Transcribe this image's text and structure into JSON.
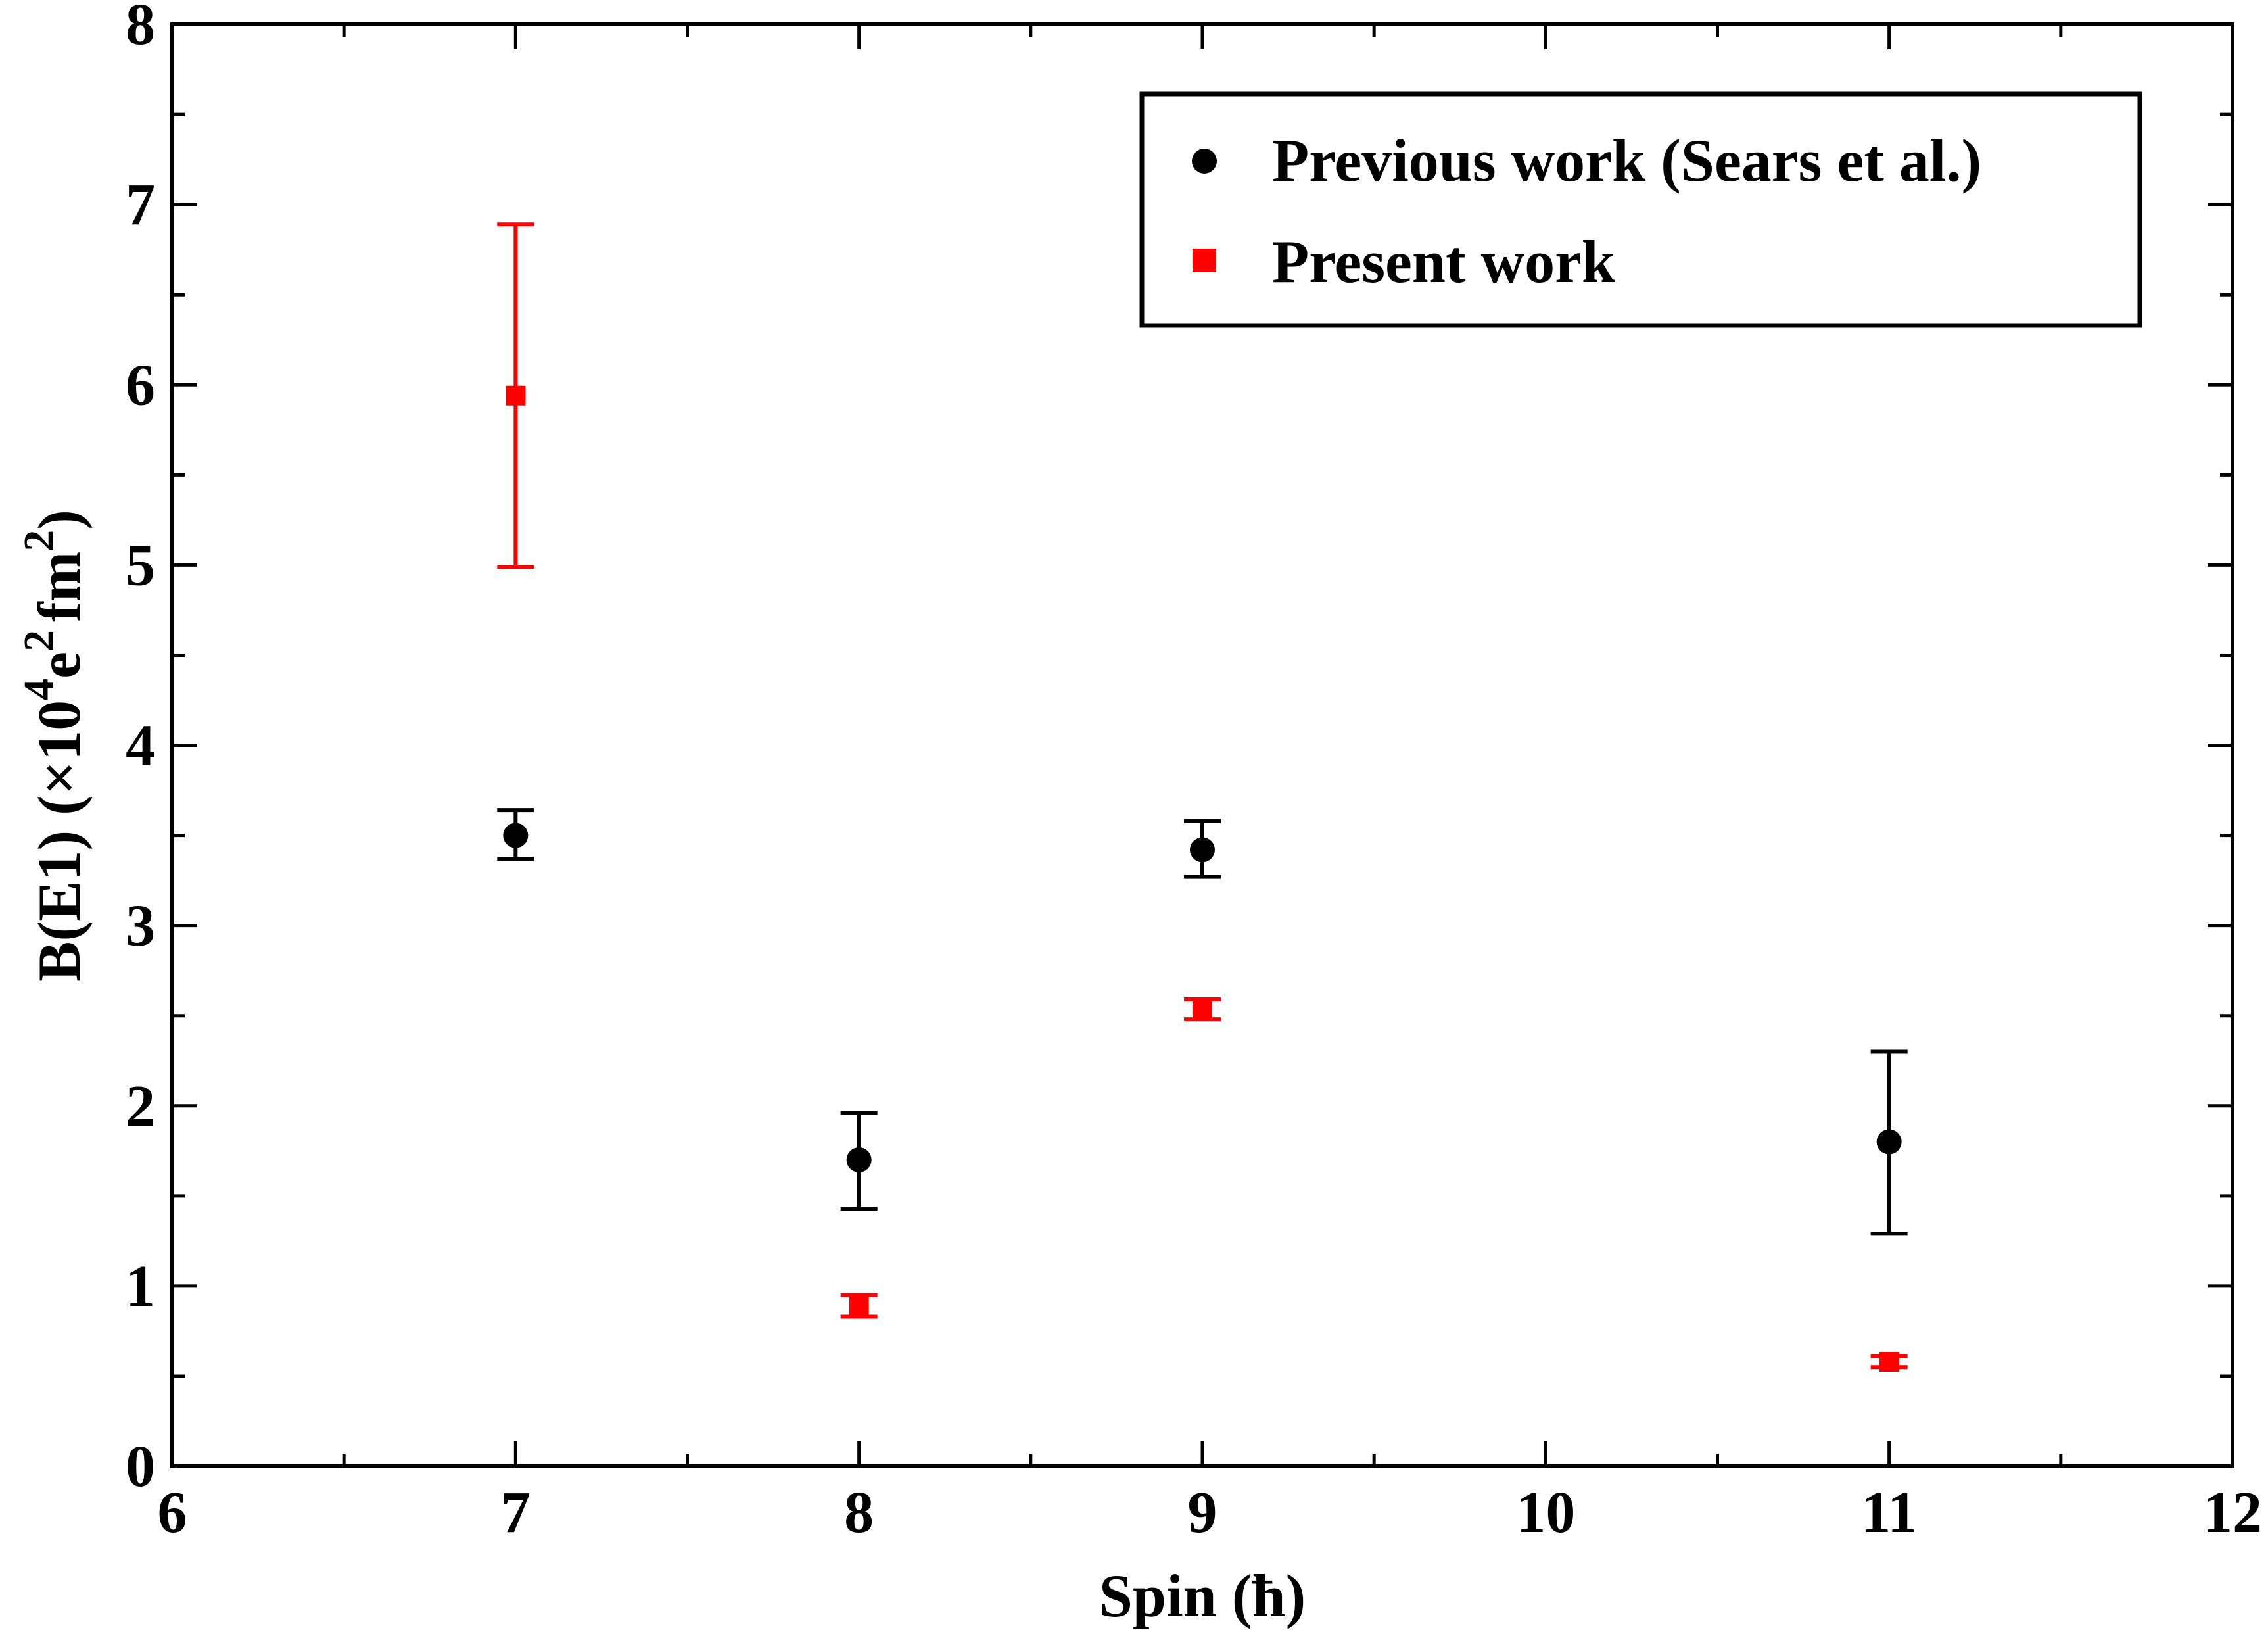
{
  "chart_data": {
    "type": "scatter",
    "title": "",
    "xlabel": "Spin (ħ)",
    "ylabel": {
      "base": "B(E1) (×10",
      "exp1": "4",
      "mid": "e",
      "exp2": "2",
      "tail": "fm",
      "exp3": "2",
      "close": ")"
    },
    "xlim": [
      6,
      12
    ],
    "ylim": [
      0,
      8
    ],
    "x_ticks": [
      "6",
      "7",
      "8",
      "9",
      "10",
      "11",
      "12"
    ],
    "y_ticks": [
      "0",
      "1",
      "2",
      "3",
      "4",
      "5",
      "6",
      "7",
      "8"
    ],
    "grid": false,
    "legend_position": "top-right",
    "series": [
      {
        "name": "Previous work (Sears et al.)",
        "color": "#000000",
        "marker": "circle",
        "points": [
          {
            "x": 7,
            "y": 3.5,
            "err_low": 3.37,
            "err_high": 3.64
          },
          {
            "x": 8,
            "y": 1.7,
            "err_low": 1.43,
            "err_high": 1.96
          },
          {
            "x": 9,
            "y": 3.42,
            "err_low": 3.27,
            "err_high": 3.58
          },
          {
            "x": 11,
            "y": 1.8,
            "err_low": 1.29,
            "err_high": 2.3
          }
        ]
      },
      {
        "name": "Present work",
        "color": "#ff0000",
        "marker": "square",
        "points": [
          {
            "x": 7,
            "y": 5.94,
            "err_low": 4.99,
            "err_high": 6.89
          },
          {
            "x": 8,
            "y": 0.89,
            "err_low": 0.83,
            "err_high": 0.95
          },
          {
            "x": 9,
            "y": 2.53,
            "err_low": 2.48,
            "err_high": 2.59
          },
          {
            "x": 11,
            "y": 0.58,
            "err_low": 0.55,
            "err_high": 0.61
          }
        ]
      }
    ]
  }
}
